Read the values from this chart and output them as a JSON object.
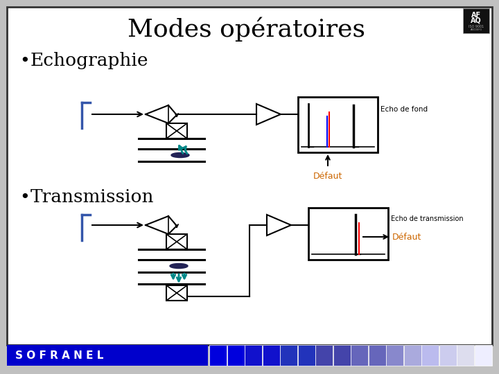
{
  "title": "Modes opératoires",
  "title_fontsize": 26,
  "bullet1": "Echographie",
  "bullet2": "Transmission",
  "label_echo_fond": "Echo de fond",
  "label_echo_trans": "Echo de transmission",
  "label_defaut1": "Défaut",
  "label_defaut2": "Défaut",
  "defaut_color": "#cc6600",
  "sofranel_text": "S O F R A N E L",
  "sofranel_bg": "#0000cc",
  "sofranel_text_color": "#ffffff",
  "teal_color": "#008888",
  "blue_color": "#3355aa",
  "slide_border": "#555555",
  "afaq_bg": "#111111",
  "afaq_text": "#ffffff"
}
